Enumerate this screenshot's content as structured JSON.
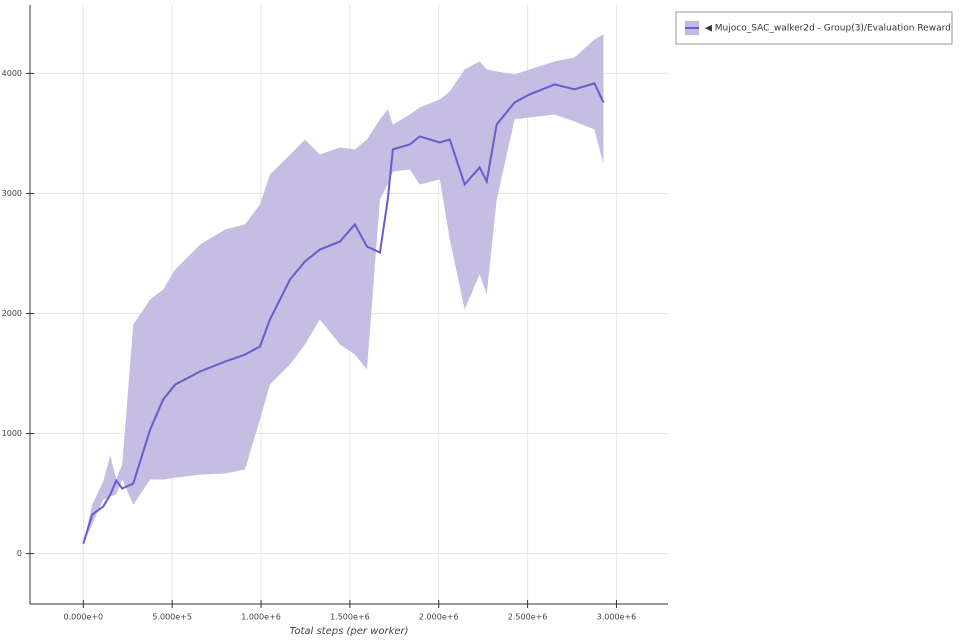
{
  "chart_data": {
    "type": "line",
    "x_label": "Total steps (per worker)",
    "x": [
      0,
      50000,
      112000,
      152000,
      185000,
      219000,
      281000,
      376000,
      449000,
      517000,
      657000,
      798000,
      910000,
      994000,
      1050000,
      1163000,
      1247000,
      1331000,
      1444000,
      1528000,
      1596000,
      1669000,
      1713000,
      1742000,
      1837000,
      1893000,
      2006000,
      2062000,
      2146000,
      2230000,
      2270000,
      2326000,
      2427000,
      2511000,
      2652000,
      2764000,
      2876000,
      2927000
    ],
    "series": [
      {
        "name": "◀ Mujoco_SAC_walker2d - Group(3)/Evaluation Reward",
        "color": "#6a5acd",
        "band_color": "#c3b9e2",
        "values": [
          83,
          325,
          392,
          492,
          608,
          542,
          583,
          1033,
          1283,
          1408,
          1517,
          1600,
          1658,
          1725,
          1950,
          2283,
          2433,
          2533,
          2600,
          2742,
          2558,
          2508,
          2950,
          3367,
          3408,
          3475,
          3425,
          3450,
          3075,
          3217,
          3100,
          3575,
          3758,
          3825,
          3908,
          3867,
          3917,
          3758
        ],
        "upper": [
          83,
          408,
          600,
          817,
          617,
          742,
          1908,
          2117,
          2200,
          2367,
          2575,
          2700,
          2742,
          2908,
          3158,
          3325,
          3450,
          3325,
          3383,
          3367,
          3450,
          3617,
          3700,
          3575,
          3658,
          3717,
          3783,
          3850,
          4033,
          4100,
          4033,
          4017,
          3992,
          4033,
          4100,
          4133,
          4283,
          4325
        ],
        "lower": [
          83,
          242,
          450,
          475,
          492,
          617,
          408,
          617,
          617,
          633,
          658,
          667,
          700,
          1117,
          1408,
          1575,
          1742,
          1950,
          1742,
          1658,
          1533,
          2950,
          3075,
          3183,
          3200,
          3075,
          3117,
          2617,
          2033,
          2325,
          2158,
          2950,
          3617,
          3633,
          3658,
          3600,
          3533,
          3242
        ]
      }
    ],
    "xlim": [
      -300000,
      3290000
    ],
    "ylim": [
      -420,
      4570
    ],
    "xticks": [
      {
        "value": 0,
        "label": "0.000e+0"
      },
      {
        "value": 500000,
        "label": "5.000e+5"
      },
      {
        "value": 1000000,
        "label": "1.000e+6"
      },
      {
        "value": 1500000,
        "label": "1.500e+6"
      },
      {
        "value": 2000000,
        "label": "2.000e+6"
      },
      {
        "value": 2500000,
        "label": "2.500e+6"
      },
      {
        "value": 3000000,
        "label": "3.000e+6"
      }
    ],
    "yticks": [
      0,
      1000,
      2000,
      3000,
      4000
    ],
    "grid": true
  }
}
